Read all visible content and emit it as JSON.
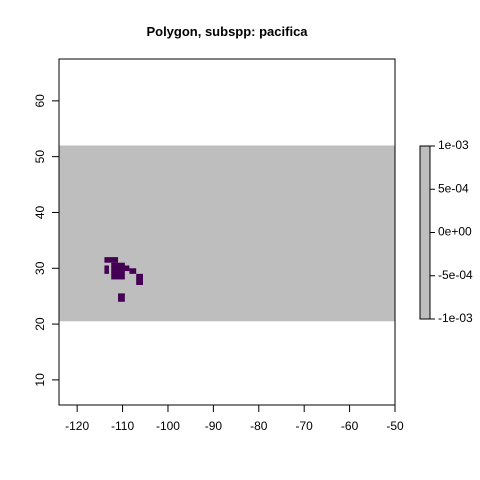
{
  "chart_data": {
    "type": "heatmap",
    "title": "Polygon, subspp: pacifica",
    "xlabel": "",
    "ylabel": "",
    "xlim": [
      -124,
      -50
    ],
    "ylim": [
      5.5,
      67.5
    ],
    "x_ticks": [
      -120,
      -110,
      -100,
      -90,
      -80,
      -70,
      -60,
      -50
    ],
    "y_ticks": [
      10,
      20,
      30,
      40,
      50,
      60
    ],
    "raster_extent": {
      "xmin": -124,
      "xmax": -50,
      "ymin": 20.5,
      "ymax": 52
    },
    "raster_fill_color": "#bebebe",
    "polygon_color": "#440154",
    "polygon_cells": [
      {
        "x0": -114,
        "x1": -111,
        "y0": 31,
        "y1": 32
      },
      {
        "x0": -114,
        "x1": -113,
        "y0": 29,
        "y1": 30.5
      },
      {
        "x0": -112.5,
        "x1": -109.5,
        "y0": 28,
        "y1": 31
      },
      {
        "x0": -110,
        "x1": -108.5,
        "y0": 29.5,
        "y1": 30.5
      },
      {
        "x0": -108.5,
        "x1": -107,
        "y0": 29,
        "y1": 30
      },
      {
        "x0": -107,
        "x1": -105.5,
        "y0": 27,
        "y1": 29
      },
      {
        "x0": -111,
        "x1": -109.5,
        "y0": 24,
        "y1": 25.5
      }
    ],
    "legend": {
      "placement": "right",
      "color": "#bebebe",
      "labels": [
        "1e-03",
        "5e-04",
        "0e+00",
        "-5e-04",
        "-1e-03"
      ],
      "values": [
        0.001,
        0.0005,
        0,
        -0.0005,
        -0.001
      ]
    }
  }
}
